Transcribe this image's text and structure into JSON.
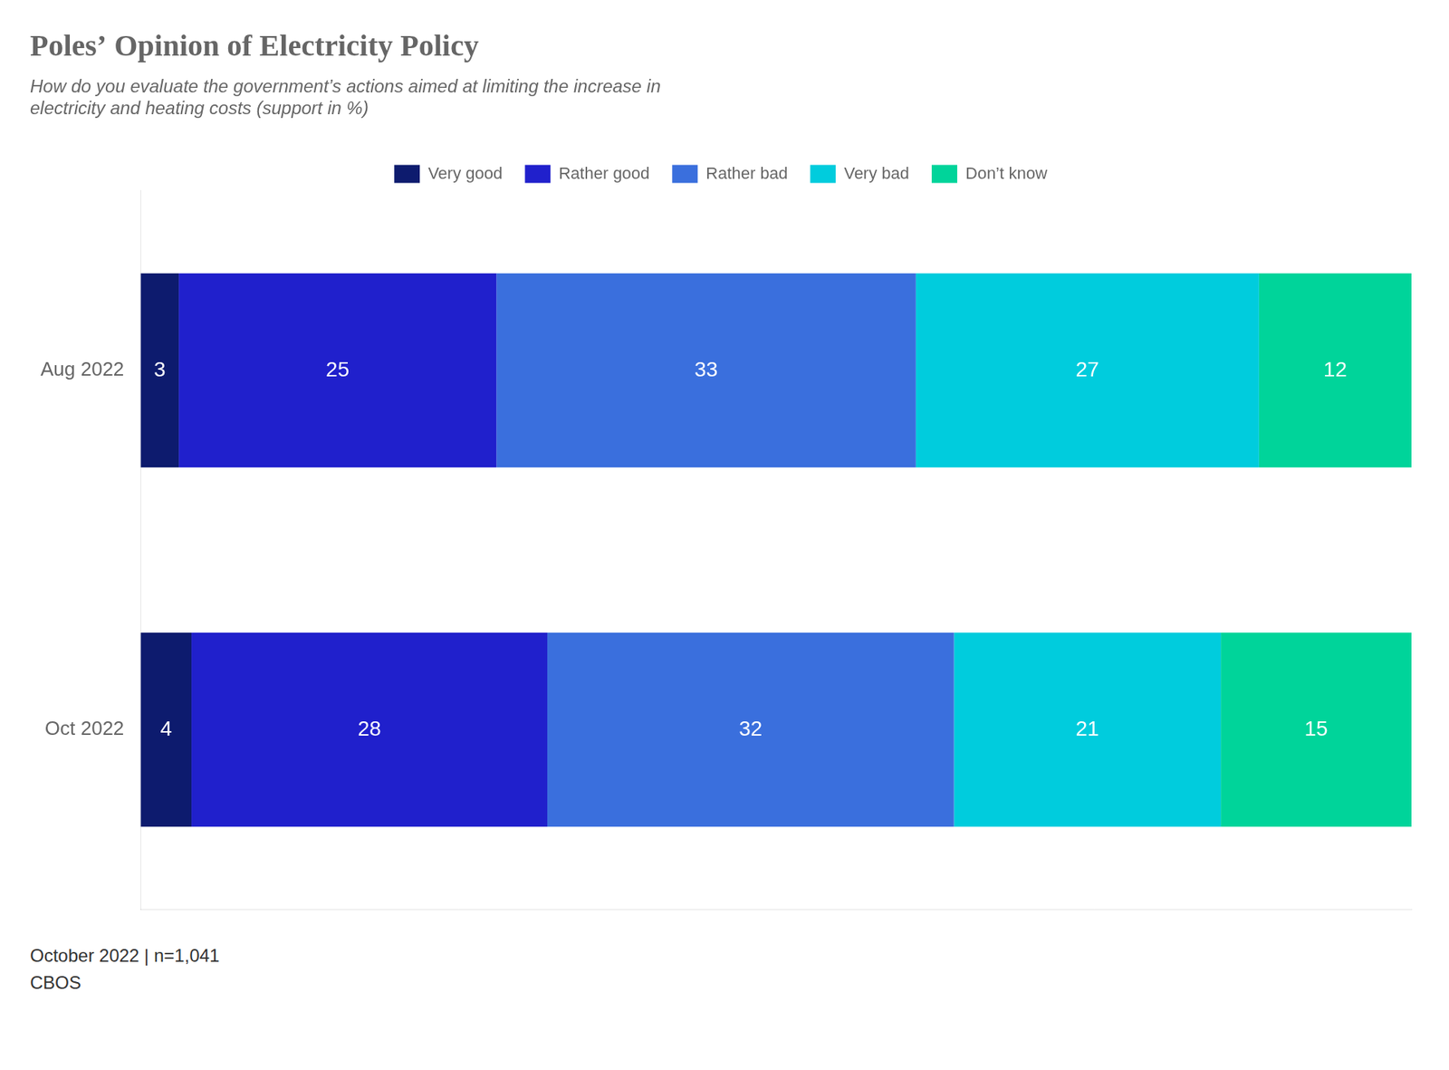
{
  "chart_data": {
    "type": "bar",
    "orientation": "horizontal",
    "stacked": true,
    "title": "Poles’ Opinion of Electricity Policy",
    "subtitle": "How do you evaluate the government’s actions aimed at limiting the increase in\nelectricity and heating costs (support in %)",
    "categories": [
      "Aug 2022",
      "Oct 2022"
    ],
    "series": [
      {
        "name": "Very good",
        "color": "#0d1b6e",
        "values": [
          3,
          4
        ]
      },
      {
        "name": "Rather good",
        "color": "#2020cc",
        "values": [
          25,
          28
        ]
      },
      {
        "name": "Rather bad",
        "color": "#3a6fdd",
        "values": [
          33,
          32
        ]
      },
      {
        "name": "Very bad",
        "color": "#00ccdd",
        "values": [
          27,
          21
        ]
      },
      {
        "name": "Don’t know",
        "color": "#00d49a",
        "values": [
          12,
          15
        ]
      }
    ],
    "xlim": [
      0,
      100
    ],
    "tick_labels": "y",
    "data_labels": true,
    "grid": false,
    "legend": "top",
    "annotations": [
      "October 2022 | n=1,041",
      "CBOS"
    ]
  }
}
